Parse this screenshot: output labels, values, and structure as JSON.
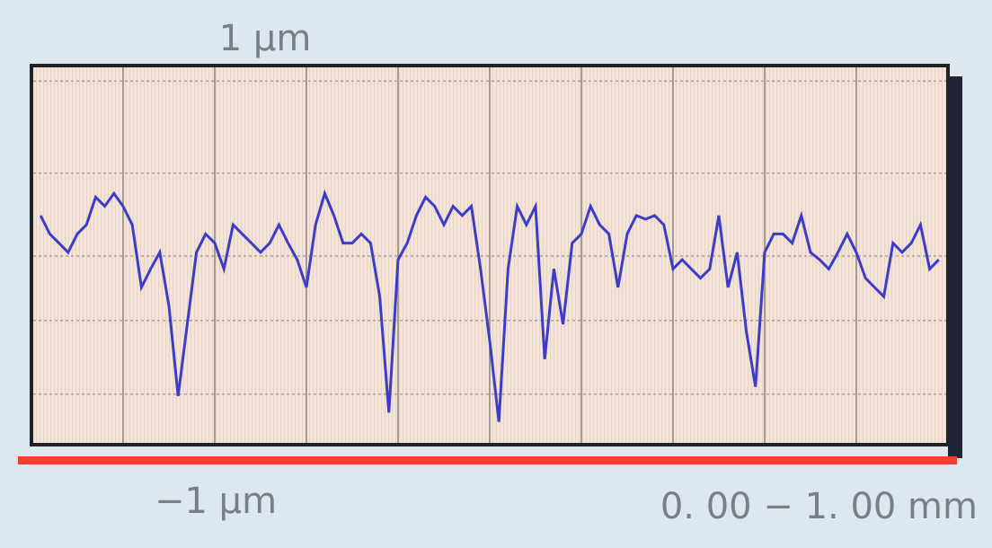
{
  "chart_data": {
    "type": "line",
    "yticks": [
      {
        "value": 1,
        "label": "1 µm"
      },
      {
        "value": -1,
        "label": "−1 µm"
      }
    ],
    "ylim": [
      -1,
      1
    ],
    "xlim": [
      0,
      1
    ],
    "x_range_label": "0. 00 − 1. 00 mm",
    "xgrid": [
      0.1,
      0.2,
      0.3,
      0.4,
      0.5,
      0.6,
      0.7,
      0.8,
      0.9
    ],
    "ygrid": [
      -0.75,
      -0.35,
      0,
      0.45,
      0.95
    ],
    "x": [
      0.01,
      0.02,
      0.03,
      0.04,
      0.05,
      0.06,
      0.07,
      0.08,
      0.09,
      0.1,
      0.11,
      0.12,
      0.13,
      0.14,
      0.15,
      0.16,
      0.17,
      0.18,
      0.19,
      0.2,
      0.21,
      0.22,
      0.23,
      0.24,
      0.25,
      0.26,
      0.27,
      0.28,
      0.29,
      0.3,
      0.31,
      0.32,
      0.33,
      0.34,
      0.35,
      0.36,
      0.37,
      0.38,
      0.39,
      0.4,
      0.41,
      0.42,
      0.43,
      0.44,
      0.45,
      0.46,
      0.47,
      0.48,
      0.49,
      0.5,
      0.51,
      0.52,
      0.53,
      0.54,
      0.55,
      0.56,
      0.57,
      0.58,
      0.59,
      0.6,
      0.61,
      0.62,
      0.63,
      0.64,
      0.65,
      0.66,
      0.67,
      0.68,
      0.69,
      0.7,
      0.71,
      0.72,
      0.73,
      0.74,
      0.75,
      0.76,
      0.77,
      0.78,
      0.79,
      0.8,
      0.81,
      0.82,
      0.83,
      0.84,
      0.85,
      0.86,
      0.87,
      0.88,
      0.89,
      0.9,
      0.91,
      0.92,
      0.93,
      0.94,
      0.95,
      0.96,
      0.97,
      0.98,
      0.99
    ],
    "series": [
      {
        "color": "#3c3cc8",
        "values": [
          0.22,
          0.12,
          0.07,
          0.02,
          0.12,
          0.17,
          0.32,
          0.27,
          0.34,
          0.27,
          0.17,
          -0.17,
          -0.07,
          0.02,
          -0.27,
          -0.76,
          -0.37,
          0.02,
          0.12,
          0.07,
          -0.07,
          0.17,
          0.12,
          0.07,
          0.02,
          0.07,
          0.17,
          0.07,
          -0.02,
          -0.17,
          0.17,
          0.34,
          0.22,
          0.07,
          0.07,
          0.12,
          0.07,
          -0.22,
          -0.85,
          -0.02,
          0.07,
          0.22,
          0.32,
          0.27,
          0.17,
          0.27,
          0.22,
          0.27,
          -0.07,
          -0.46,
          -0.9,
          -0.07,
          0.27,
          0.17,
          0.27,
          -0.56,
          -0.07,
          -0.37,
          0.07,
          0.12,
          0.27,
          0.17,
          0.12,
          -0.17,
          0.12,
          0.22,
          0.2,
          0.22,
          0.17,
          -0.07,
          -0.02,
          -0.07,
          -0.12,
          -0.07,
          0.22,
          -0.17,
          0.02,
          -0.41,
          -0.71,
          0.02,
          0.12,
          0.12,
          0.07,
          0.22,
          0.02,
          -0.02,
          -0.07,
          0.02,
          0.12,
          0.02,
          -0.12,
          -0.17,
          -0.22,
          0.07,
          0.02,
          0.07,
          0.17,
          -0.07,
          -0.02
        ]
      }
    ]
  }
}
